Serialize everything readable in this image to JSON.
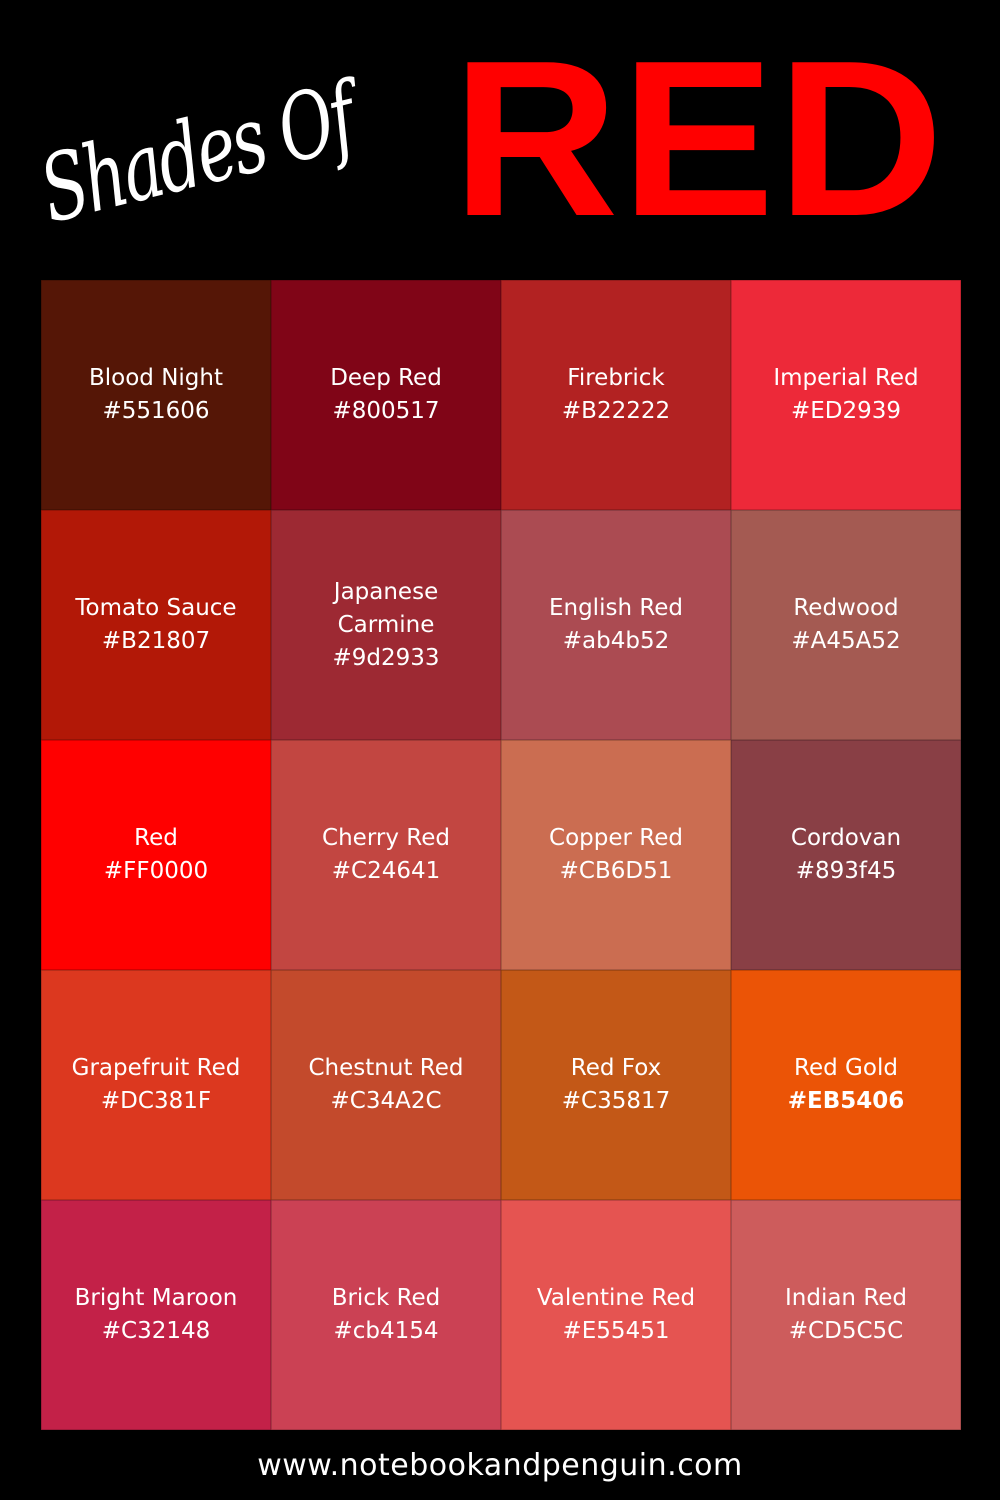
{
  "title": {
    "script": "Shades Of",
    "main": "RED",
    "main_color": "#FF0000"
  },
  "swatches": [
    {
      "name": "Blood Night",
      "hex": "#551606",
      "color": "#551606"
    },
    {
      "name": "Deep Red",
      "hex": "#800517",
      "color": "#800517"
    },
    {
      "name": "Firebrick",
      "hex": "#B22222",
      "color": "#B22222"
    },
    {
      "name": "Imperial Red",
      "hex": "#ED2939",
      "color": "#ED2939"
    },
    {
      "name": "Tomato Sauce",
      "hex": "#B21807",
      "color": "#B21807"
    },
    {
      "name": "Japanese Carmine",
      "hex": "#9d2933",
      "color": "#9d2933"
    },
    {
      "name": "English Red",
      "hex": "#ab4b52",
      "color": "#ab4b52"
    },
    {
      "name": "Redwood",
      "hex": "#A45A52",
      "color": "#A45A52"
    },
    {
      "name": "Red",
      "hex": "#FF0000",
      "color": "#FF0000"
    },
    {
      "name": "Cherry Red",
      "hex": "#C24641",
      "color": "#C24641"
    },
    {
      "name": "Copper Red",
      "hex": "#CB6D51",
      "color": "#CB6D51"
    },
    {
      "name": "Cordovan",
      "hex": "#893f45",
      "color": "#893f45"
    },
    {
      "name": "Grapefruit Red",
      "hex": "#DC381F",
      "color": "#DC381F"
    },
    {
      "name": "Chestnut Red",
      "hex": "#C34A2C",
      "color": "#C34A2C"
    },
    {
      "name": "Red Fox",
      "hex": "#C35817",
      "color": "#C35817"
    },
    {
      "name": "Red Gold",
      "hex": "#EB5406",
      "color": "#EB5406",
      "hex_bold": true
    },
    {
      "name": "Bright Maroon",
      "hex": "#C32148",
      "color": "#C32148"
    },
    {
      "name": "Brick Red",
      "hex": "#cb4154",
      "color": "#cb4154"
    },
    {
      "name": "Valentine Red",
      "hex": "#E55451",
      "color": "#E55451"
    },
    {
      "name": "Indian Red",
      "hex": "#CD5C5C",
      "color": "#CD5C5C"
    }
  ],
  "footer": {
    "url": "www.notebookandpenguin.com"
  }
}
